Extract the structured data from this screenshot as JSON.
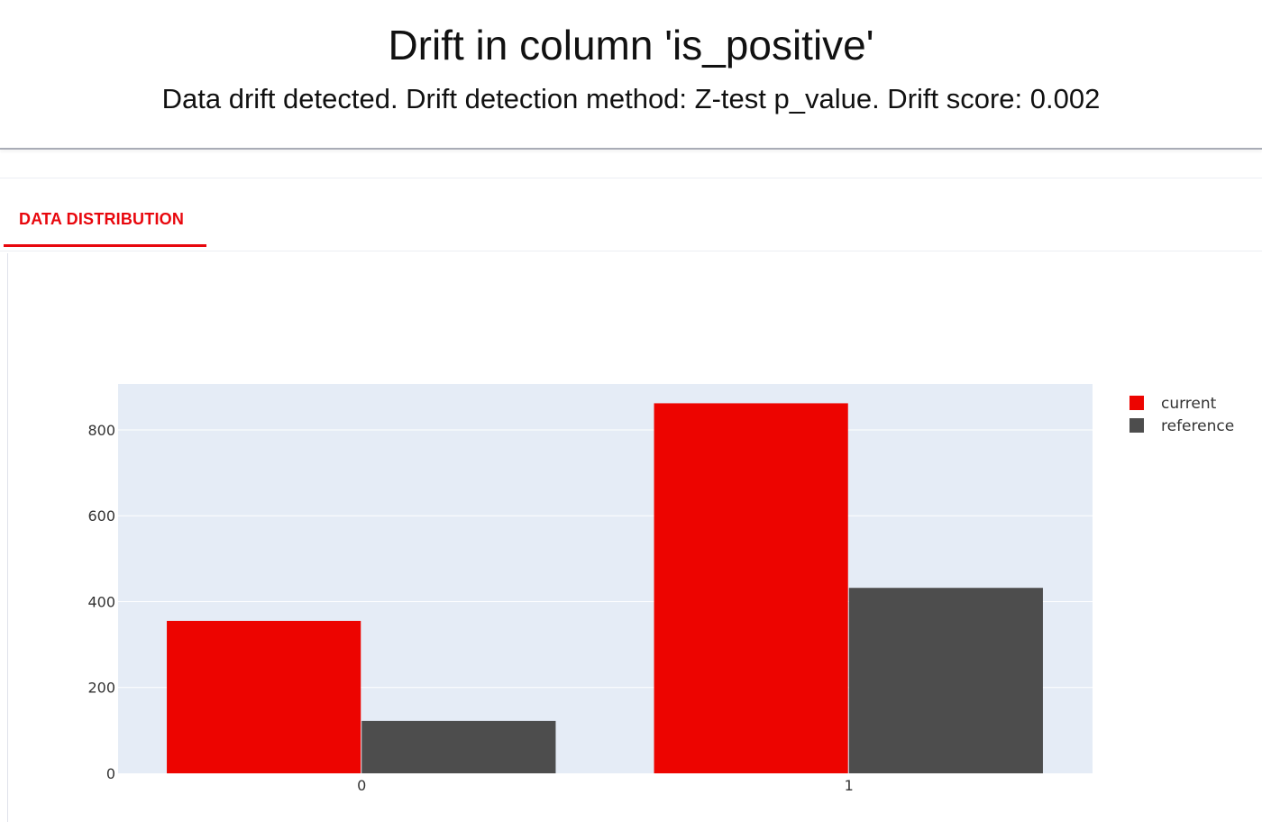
{
  "header": {
    "title": "Drift in column 'is_positive'",
    "subtitle": "Data drift detected. Drift detection method: Z-test p_value. Drift score: 0.002"
  },
  "tabs": [
    {
      "label": "DATA DISTRIBUTION",
      "active": true
    }
  ],
  "colors": {
    "accent": "#e8070d",
    "current": "#ed0400",
    "reference": "#4d4d4d",
    "plot_bg": "#e5ecf6"
  },
  "chart_data": {
    "type": "bar",
    "categories": [
      "0",
      "1"
    ],
    "series": [
      {
        "name": "current",
        "values": [
          355,
          862
        ],
        "color": "#ed0400"
      },
      {
        "name": "reference",
        "values": [
          122,
          432
        ],
        "color": "#4d4d4d"
      }
    ],
    "yticks": [
      0,
      200,
      400,
      600,
      800
    ],
    "ylim": [
      0,
      907
    ],
    "grid": true,
    "legend_position": "top-right"
  }
}
